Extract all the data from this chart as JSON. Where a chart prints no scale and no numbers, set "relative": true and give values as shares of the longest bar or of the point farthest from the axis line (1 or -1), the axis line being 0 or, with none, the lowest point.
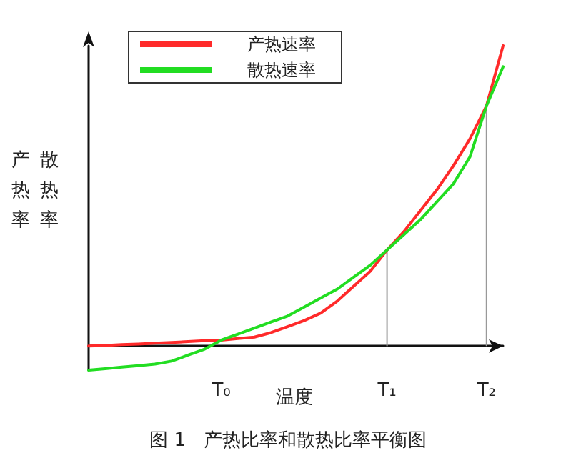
{
  "chart_data": {
    "type": "line",
    "relative": true,
    "title": "图 1   产热比率和散热比率平衡图",
    "xlabel": "温度",
    "ylabel": "产热率散热率",
    "categories": [
      null,
      null,
      null,
      null,
      null,
      null,
      null,
      null,
      "T₀",
      null,
      null,
      null,
      null,
      null,
      null,
      null,
      null,
      null,
      "T₁",
      null,
      null,
      null,
      null,
      null,
      "T₂",
      null
    ],
    "series": [
      {
        "name": "产热速率",
        "color": "#ff2a2a",
        "values": [
          0,
          0.002,
          0.005,
          0.007,
          0.01,
          0.012,
          0.015,
          0.018,
          0.02,
          0.025,
          0.03,
          0.045,
          0.065,
          0.085,
          0.11,
          0.15,
          0.2,
          0.25,
          0.32,
          0.38,
          0.45,
          0.52,
          0.6,
          0.69,
          0.8,
          1
        ]
      },
      {
        "name": "散热速率",
        "color": "#22dd22",
        "values": [
          -0.08,
          -0.075,
          -0.07,
          -0.065,
          -0.06,
          -0.05,
          -0.03,
          -0.01,
          0.02,
          0.04,
          0.06,
          0.08,
          0.1,
          0.13,
          0.16,
          0.19,
          0.23,
          0.27,
          0.32,
          0.37,
          0.42,
          0.48,
          0.54,
          0.63,
          0.8,
          0.93
        ]
      }
    ],
    "ref_lines": [
      {
        "axis": "x",
        "value": "T₁",
        "color": "#999999"
      },
      {
        "axis": "x",
        "value": "T₂",
        "color": "#999999"
      }
    ],
    "legend": "top",
    "grid": false,
    "marker": "none",
    "line_style": "solid"
  }
}
